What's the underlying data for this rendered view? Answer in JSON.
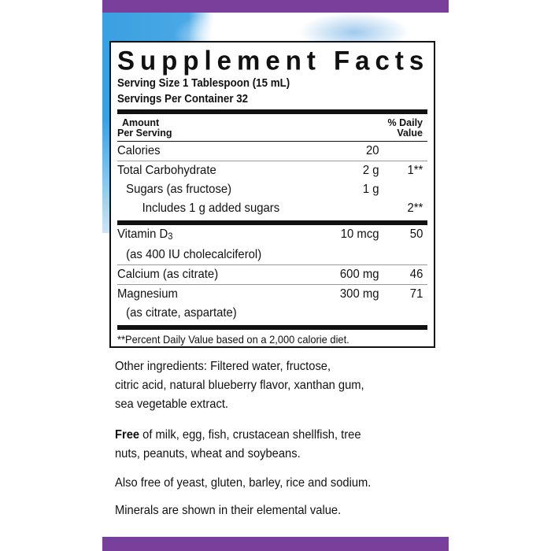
{
  "colors": {
    "accent_bar": "#7a3f9b",
    "sky": "#3aa0e0"
  },
  "title": "Supplement Facts",
  "serving_size": "Serving Size 1 Tablespoon (15 mL)",
  "servings_per_container": "Servings Per Container 32",
  "header": {
    "amount_1": "Amount",
    "amount_2": "Per Serving",
    "dv_1": "% Daily",
    "dv_2": "Value"
  },
  "rows": [
    {
      "name": "Calories",
      "amount": "20",
      "dv": ""
    },
    {
      "name": "Total Carbohydrate",
      "amount": "2 g",
      "dv": "1**"
    },
    {
      "name": "Sugars (as fructose)",
      "amount": "1 g",
      "dv": ""
    },
    {
      "name": "Includes 1 g added sugars",
      "amount": "",
      "dv": "2**"
    },
    {
      "name": "Vitamin D",
      "name_sub": "3",
      "name2": "(as 400 IU cholecalciferol)",
      "amount": "10 mcg",
      "dv": "50"
    },
    {
      "name": "Calcium (as citrate)",
      "amount": "600 mg",
      "dv": "46"
    },
    {
      "name": "Magnesium",
      "name2": "(as citrate, aspartate)",
      "amount": "300 mg",
      "dv": "71"
    }
  ],
  "footnote": "**Percent Daily Value based on a 2,000 calorie diet.",
  "other_ingredients": [
    "Other ingredients: Filtered water, fructose,",
    "citric acid, natural blueberry flavor, xanthan gum,",
    "sea vegetable extract."
  ],
  "free_of": {
    "bold": "Free",
    "lines": [
      " of milk, egg, fish, crustacean shellfish, tree",
      "nuts, peanuts, wheat and soybeans."
    ]
  },
  "also_free": "Also free of yeast, gluten, barley, rice and sodium.",
  "minerals_note": "Minerals are shown in their elemental value."
}
